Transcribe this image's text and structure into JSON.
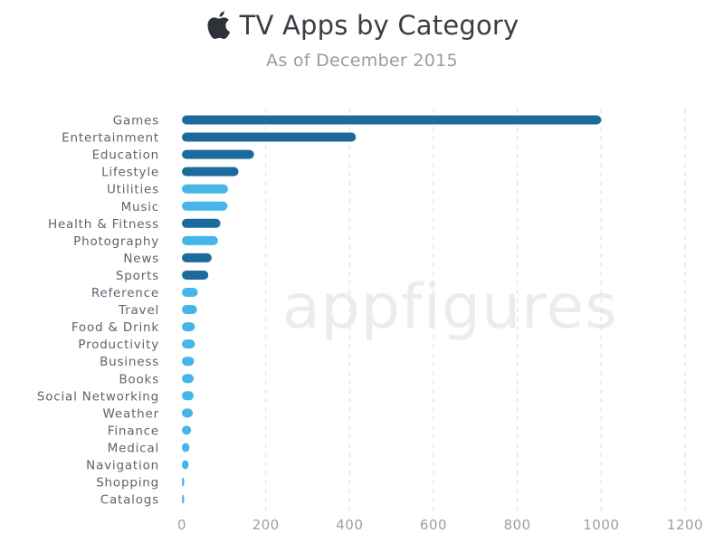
{
  "header": {
    "title": "TV Apps by Category",
    "subtitle": "As of December 2015",
    "logo_icon": "apple-logo-icon"
  },
  "watermark": {
    "part1": "app",
    "part2": "figures"
  },
  "colors": {
    "dark_bar": "#1d6b9c",
    "light_bar": "#45b6e8",
    "text": "#5c6470",
    "tick": "#9b9ea6",
    "grid": "#d9dbe1"
  },
  "chart_data": {
    "type": "bar",
    "orientation": "horizontal",
    "title": "TV Apps by Category",
    "subtitle": "As of December 2015",
    "xlabel": "",
    "ylabel": "",
    "xlim": [
      0,
      1200
    ],
    "xticks": [
      0,
      200,
      400,
      600,
      800,
      1000,
      1200
    ],
    "grid": true,
    "categories": [
      "Games",
      "Entertainment",
      "Education",
      "Lifestyle",
      "Utilities",
      "Music",
      "Health & Fitness",
      "Photography",
      "News",
      "Sports",
      "Reference",
      "Travel",
      "Food & Drink",
      "Productivity",
      "Business",
      "Books",
      "Social Networking",
      "Weather",
      "Finance",
      "Medical",
      "Navigation",
      "Shopping",
      "Catalogs"
    ],
    "values": [
      1000,
      415,
      172,
      135,
      110,
      109,
      92,
      86,
      71,
      63,
      38,
      36,
      31,
      31,
      29,
      28,
      28,
      26,
      22,
      18,
      16,
      4,
      1
    ],
    "bar_colors": [
      "dark",
      "dark",
      "dark",
      "dark",
      "light",
      "light",
      "dark",
      "light",
      "dark",
      "dark",
      "light",
      "light",
      "light",
      "light",
      "light",
      "light",
      "light",
      "light",
      "light",
      "light",
      "light",
      "light",
      "light"
    ]
  }
}
